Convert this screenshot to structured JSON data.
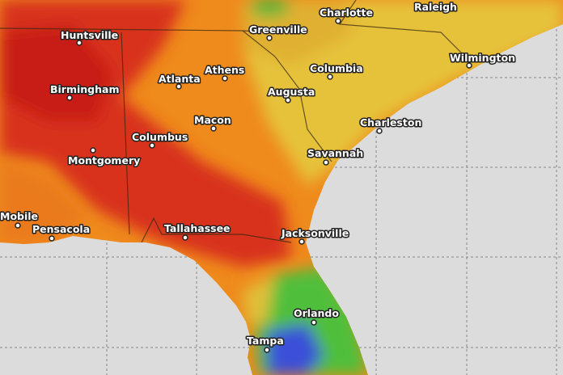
{
  "cities": [
    {
      "name": "Charlotte"
    },
    {
      "name": "Raleigh"
    },
    {
      "name": "Greenville"
    },
    {
      "name": "Huntsville"
    },
    {
      "name": "Wilmington"
    },
    {
      "name": "Athens"
    },
    {
      "name": "Columbia"
    },
    {
      "name": "Atlanta"
    },
    {
      "name": "Birmingham"
    },
    {
      "name": "Augusta"
    },
    {
      "name": "Charleston"
    },
    {
      "name": "Macon"
    },
    {
      "name": "Columbus"
    },
    {
      "name": "Savannah"
    },
    {
      "name": "Montgomery"
    },
    {
      "name": "Mobile"
    },
    {
      "name": "Pensacola"
    },
    {
      "name": "Tallahassee"
    },
    {
      "name": "Jacksonville"
    },
    {
      "name": "Orlando"
    },
    {
      "name": "Tampa"
    }
  ]
}
